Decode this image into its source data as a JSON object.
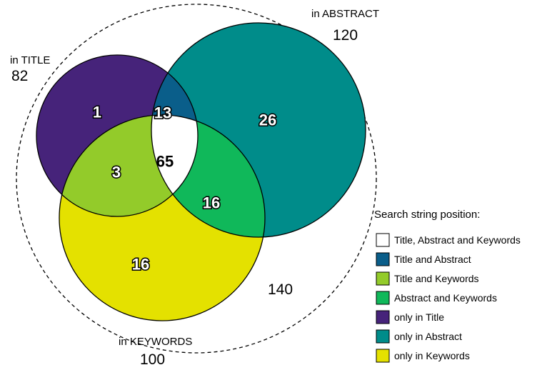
{
  "sets": {
    "title": {
      "name": "in TITLE",
      "count": "82",
      "color": "#46237a"
    },
    "abstract": {
      "name": "in ABSTRACT",
      "count": "120",
      "color": "#008c8a"
    },
    "keywords": {
      "name": "in KEYWORDS",
      "count": "100",
      "color": "#e4e100"
    }
  },
  "total": "140",
  "regions": {
    "only_title": "1",
    "title_abstract": "13",
    "title_keywords": "3",
    "all_three": "65",
    "abstract_keywords": "16",
    "only_abstract": "26",
    "only_keywords": "16"
  },
  "legend": {
    "title": "Search string position:",
    "items": [
      {
        "label": "Title, Abstract and Keywords",
        "color": "#ffffff"
      },
      {
        "label": "Title and Abstract",
        "color": "#0a5e8a"
      },
      {
        "label": "Title and Keywords",
        "color": "#93cb2a"
      },
      {
        "label": "Abstract and Keywords",
        "color": "#10b85a"
      },
      {
        "label": "only in Title",
        "color": "#46237a"
      },
      {
        "label": "only in Abstract",
        "color": "#008c8a"
      },
      {
        "label": "only in Keywords",
        "color": "#e4e100"
      }
    ]
  }
}
